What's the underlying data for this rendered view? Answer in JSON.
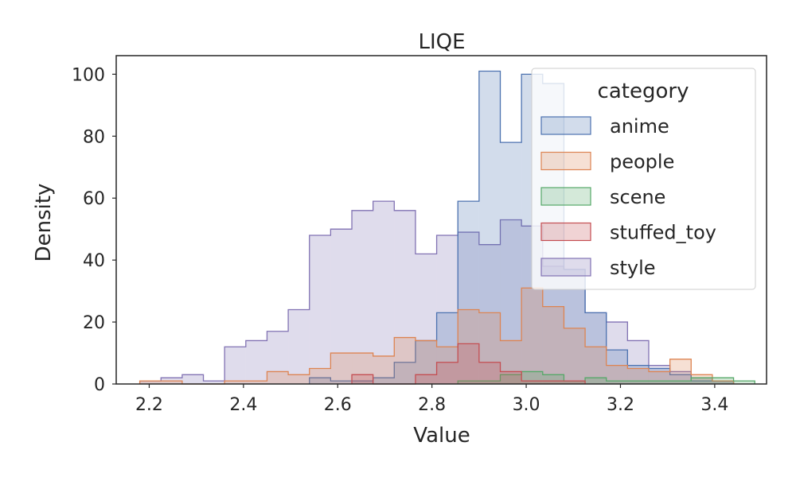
{
  "chart_data": {
    "type": "histogram-step",
    "title": "LIQE",
    "xlabel": "Value",
    "ylabel": "Density",
    "xlim": [
      2.13,
      3.51
    ],
    "ylim": [
      0,
      106
    ],
    "xticks": [
      "2.2",
      "2.4",
      "2.6",
      "2.8",
      "3.0",
      "3.2",
      "3.4"
    ],
    "yticks": [
      "0",
      "20",
      "40",
      "60",
      "80",
      "100"
    ],
    "grid": false,
    "legend": {
      "title": "category",
      "placement": "top-right"
    },
    "bin_width": 0.045,
    "series": [
      {
        "name": "style",
        "color": "#8172b3",
        "bins": [
          {
            "x0": 2.18,
            "y": 1
          },
          {
            "x0": 2.225,
            "y": 2
          },
          {
            "x0": 2.27,
            "y": 3
          },
          {
            "x0": 2.315,
            "y": 1
          },
          {
            "x0": 2.36,
            "y": 12
          },
          {
            "x0": 2.405,
            "y": 14
          },
          {
            "x0": 2.45,
            "y": 17
          },
          {
            "x0": 2.495,
            "y": 24
          },
          {
            "x0": 2.54,
            "y": 48
          },
          {
            "x0": 2.585,
            "y": 50
          },
          {
            "x0": 2.63,
            "y": 56
          },
          {
            "x0": 2.675,
            "y": 59
          },
          {
            "x0": 2.72,
            "y": 56
          },
          {
            "x0": 2.765,
            "y": 42
          },
          {
            "x0": 2.81,
            "y": 48
          },
          {
            "x0": 2.855,
            "y": 49
          },
          {
            "x0": 2.9,
            "y": 45
          },
          {
            "x0": 2.945,
            "y": 53
          },
          {
            "x0": 2.99,
            "y": 51
          },
          {
            "x0": 3.035,
            "y": 38
          },
          {
            "x0": 3.08,
            "y": 37
          },
          {
            "x0": 3.125,
            "y": 23
          },
          {
            "x0": 3.17,
            "y": 20
          },
          {
            "x0": 3.215,
            "y": 14
          },
          {
            "x0": 3.26,
            "y": 6
          },
          {
            "x0": 3.305,
            "y": 4
          },
          {
            "x0": 3.35,
            "y": 2
          },
          {
            "x0": 3.395,
            "y": 1
          }
        ]
      },
      {
        "name": "anime",
        "color": "#4c72b0",
        "bins": [
          {
            "x0": 2.54,
            "y": 2
          },
          {
            "x0": 2.585,
            "y": 1
          },
          {
            "x0": 2.63,
            "y": 1
          },
          {
            "x0": 2.675,
            "y": 2
          },
          {
            "x0": 2.72,
            "y": 7
          },
          {
            "x0": 2.765,
            "y": 14
          },
          {
            "x0": 2.81,
            "y": 23
          },
          {
            "x0": 2.855,
            "y": 59
          },
          {
            "x0": 2.9,
            "y": 101
          },
          {
            "x0": 2.945,
            "y": 78
          },
          {
            "x0": 2.99,
            "y": 100
          },
          {
            "x0": 3.035,
            "y": 97
          },
          {
            "x0": 3.08,
            "y": 37
          },
          {
            "x0": 3.125,
            "y": 23
          },
          {
            "x0": 3.17,
            "y": 11
          },
          {
            "x0": 3.215,
            "y": 6
          },
          {
            "x0": 3.26,
            "y": 5
          },
          {
            "x0": 3.305,
            "y": 3
          },
          {
            "x0": 3.35,
            "y": 1
          },
          {
            "x0": 3.395,
            "y": 1
          }
        ]
      },
      {
        "name": "people",
        "color": "#dd8452",
        "bins": [
          {
            "x0": 2.18,
            "y": 1
          },
          {
            "x0": 2.225,
            "y": 1
          },
          {
            "x0": 2.27,
            "y": 0
          },
          {
            "x0": 2.315,
            "y": 0
          },
          {
            "x0": 2.36,
            "y": 1
          },
          {
            "x0": 2.405,
            "y": 1
          },
          {
            "x0": 2.45,
            "y": 4
          },
          {
            "x0": 2.495,
            "y": 3
          },
          {
            "x0": 2.54,
            "y": 5
          },
          {
            "x0": 2.585,
            "y": 10
          },
          {
            "x0": 2.63,
            "y": 10
          },
          {
            "x0": 2.675,
            "y": 9
          },
          {
            "x0": 2.72,
            "y": 15
          },
          {
            "x0": 2.765,
            "y": 14
          },
          {
            "x0": 2.81,
            "y": 12
          },
          {
            "x0": 2.855,
            "y": 24
          },
          {
            "x0": 2.9,
            "y": 23
          },
          {
            "x0": 2.945,
            "y": 14
          },
          {
            "x0": 2.99,
            "y": 31
          },
          {
            "x0": 3.035,
            "y": 25
          },
          {
            "x0": 3.08,
            "y": 18
          },
          {
            "x0": 3.125,
            "y": 12
          },
          {
            "x0": 3.17,
            "y": 6
          },
          {
            "x0": 3.215,
            "y": 5
          },
          {
            "x0": 3.26,
            "y": 4
          },
          {
            "x0": 3.305,
            "y": 8
          },
          {
            "x0": 3.35,
            "y": 3
          },
          {
            "x0": 3.395,
            "y": 1
          }
        ]
      },
      {
        "name": "scene",
        "color": "#55a868",
        "bins": [
          {
            "x0": 2.855,
            "y": 1
          },
          {
            "x0": 2.9,
            "y": 1
          },
          {
            "x0": 2.945,
            "y": 3
          },
          {
            "x0": 2.99,
            "y": 4
          },
          {
            "x0": 3.035,
            "y": 3
          },
          {
            "x0": 3.08,
            "y": 1
          },
          {
            "x0": 3.125,
            "y": 2
          },
          {
            "x0": 3.17,
            "y": 1
          },
          {
            "x0": 3.215,
            "y": 1
          },
          {
            "x0": 3.26,
            "y": 1
          },
          {
            "x0": 3.305,
            "y": 1
          },
          {
            "x0": 3.35,
            "y": 2
          },
          {
            "x0": 3.395,
            "y": 2
          },
          {
            "x0": 3.44,
            "y": 1
          }
        ]
      },
      {
        "name": "stuffed_toy",
        "color": "#c44e52",
        "bins": [
          {
            "x0": 2.63,
            "y": 3
          },
          {
            "x0": 2.675,
            "y": 0
          },
          {
            "x0": 2.72,
            "y": 0
          },
          {
            "x0": 2.765,
            "y": 3
          },
          {
            "x0": 2.81,
            "y": 7
          },
          {
            "x0": 2.855,
            "y": 13
          },
          {
            "x0": 2.9,
            "y": 7
          },
          {
            "x0": 2.945,
            "y": 4
          },
          {
            "x0": 2.99,
            "y": 1
          },
          {
            "x0": 3.035,
            "y": 1
          },
          {
            "x0": 3.08,
            "y": 1
          }
        ]
      }
    ],
    "legend_order": [
      "anime",
      "people",
      "scene",
      "stuffed_toy",
      "style"
    ]
  }
}
